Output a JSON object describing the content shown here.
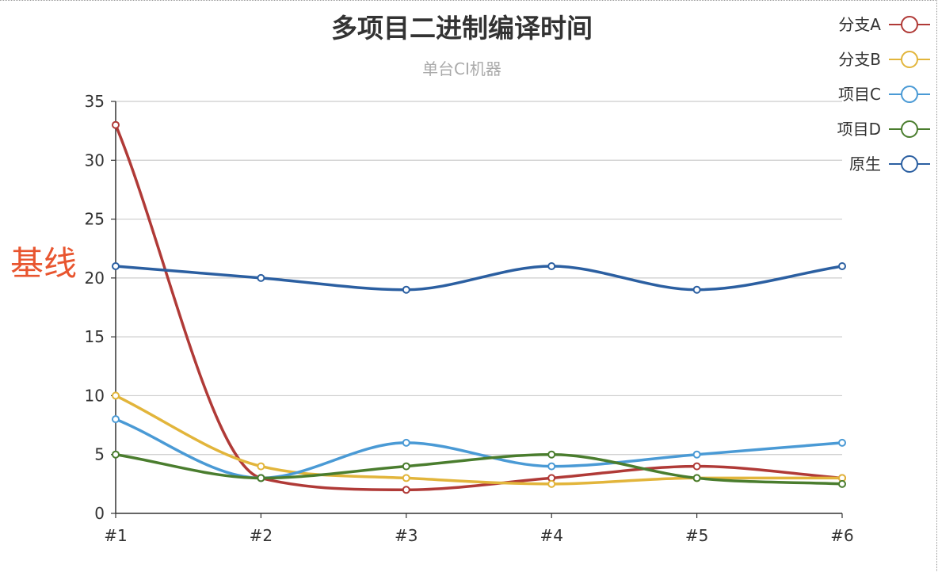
{
  "chart_data": {
    "type": "line",
    "title": "多项目二进制编译时间",
    "subtitle": "单台CI机器",
    "categories": [
      "#1",
      "#2",
      "#3",
      "#4",
      "#5",
      "#6"
    ],
    "ylim": [
      0,
      35
    ],
    "yticks": [
      0,
      5,
      10,
      15,
      20,
      25,
      30,
      35
    ],
    "grid": true,
    "smooth": true,
    "legend_position": "top-right",
    "annotation": "基线",
    "series": [
      {
        "name": "分支A",
        "color": "#b03a37",
        "values": [
          33,
          3,
          2,
          3,
          4,
          3
        ]
      },
      {
        "name": "分支B",
        "color": "#e2b53b",
        "values": [
          10,
          4,
          3,
          2.5,
          3,
          3
        ]
      },
      {
        "name": "项目C",
        "color": "#4a9ad5",
        "values": [
          8,
          3,
          6,
          4,
          5,
          6
        ]
      },
      {
        "name": "项目D",
        "color": "#4a7d2e",
        "values": [
          5,
          3,
          4,
          5,
          3,
          2.5
        ]
      },
      {
        "name": "原生",
        "color": "#2b5fa1",
        "values": [
          21,
          20,
          19,
          21,
          19,
          21
        ]
      }
    ]
  }
}
